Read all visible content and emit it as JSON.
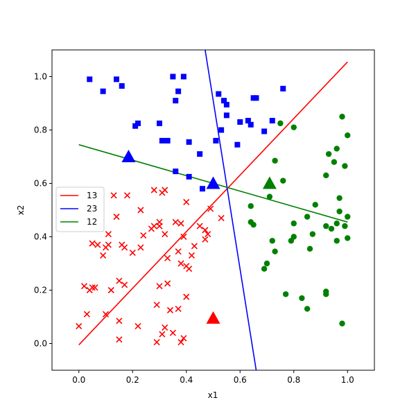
{
  "chart_data": {
    "type": "scatter",
    "title": "",
    "xlabel": "x1",
    "ylabel": "x2",
    "xlim": [
      -0.1,
      1.1
    ],
    "ylim": [
      -0.1,
      1.1
    ],
    "xticks": [
      "0.0",
      "0.2",
      "0.4",
      "0.6",
      "0.8",
      "1.0"
    ],
    "yticks": [
      "0.0",
      "0.2",
      "0.4",
      "0.6",
      "0.8",
      "1.0"
    ],
    "grid": false,
    "legend_position": "center-left",
    "colors": {
      "red": "#ff0000",
      "blue": "#0000ff",
      "green": "#008000"
    },
    "scatter_series": [
      {
        "color": "#ff0000",
        "marker": "x",
        "points": [
          [
            0.0,
            0.065
          ],
          [
            0.02,
            0.215
          ],
          [
            0.03,
            0.11
          ],
          [
            0.04,
            0.2
          ],
          [
            0.05,
            0.375
          ],
          [
            0.05,
            0.21
          ],
          [
            0.06,
            0.21
          ],
          [
            0.07,
            0.37
          ],
          [
            0.09,
            0.33
          ],
          [
            0.1,
            0.36
          ],
          [
            0.1,
            0.11
          ],
          [
            0.11,
            0.37
          ],
          [
            0.11,
            0.41
          ],
          [
            0.12,
            0.2
          ],
          [
            0.13,
            0.555
          ],
          [
            0.14,
            0.475
          ],
          [
            0.15,
            0.235
          ],
          [
            0.15,
            0.085
          ],
          [
            0.15,
            0.015
          ],
          [
            0.16,
            0.37
          ],
          [
            0.17,
            0.36
          ],
          [
            0.17,
            0.22
          ],
          [
            0.18,
            0.555
          ],
          [
            0.2,
            0.34
          ],
          [
            0.22,
            0.065
          ],
          [
            0.23,
            0.5
          ],
          [
            0.23,
            0.36
          ],
          [
            0.24,
            0.405
          ],
          [
            0.27,
            0.43
          ],
          [
            0.28,
            0.575
          ],
          [
            0.28,
            0.44
          ],
          [
            0.29,
            0.005
          ],
          [
            0.29,
            0.145
          ],
          [
            0.3,
            0.44
          ],
          [
            0.3,
            0.455
          ],
          [
            0.3,
            0.215
          ],
          [
            0.31,
            0.565
          ],
          [
            0.31,
            0.035
          ],
          [
            0.32,
            0.575
          ],
          [
            0.32,
            0.41
          ],
          [
            0.32,
            0.06
          ],
          [
            0.33,
            0.32
          ],
          [
            0.33,
            0.225
          ],
          [
            0.34,
            0.125
          ],
          [
            0.35,
            0.04
          ],
          [
            0.36,
            0.455
          ],
          [
            0.37,
            0.345
          ],
          [
            0.37,
            0.13
          ],
          [
            0.38,
            0.45
          ],
          [
            0.38,
            0.3
          ],
          [
            0.38,
            0.005
          ],
          [
            0.39,
            0.4
          ],
          [
            0.39,
            0.02
          ],
          [
            0.4,
            0.53
          ],
          [
            0.4,
            0.29
          ],
          [
            0.4,
            0.175
          ],
          [
            0.41,
            0.28
          ],
          [
            0.42,
            0.33
          ],
          [
            0.43,
            0.365
          ],
          [
            0.45,
            0.44
          ],
          [
            0.47,
            0.39
          ],
          [
            0.47,
            0.425
          ],
          [
            0.48,
            0.41
          ],
          [
            0.49,
            0.505
          ],
          [
            0.53,
            0.47
          ]
        ]
      },
      {
        "color": "#0000ff",
        "marker": "square",
        "points": [
          [
            0.04,
            0.99
          ],
          [
            0.09,
            0.945
          ],
          [
            0.14,
            0.99
          ],
          [
            0.16,
            0.965
          ],
          [
            0.21,
            0.815
          ],
          [
            0.22,
            0.825
          ],
          [
            0.3,
            0.825
          ],
          [
            0.31,
            0.76
          ],
          [
            0.33,
            0.76
          ],
          [
            0.35,
            1.0
          ],
          [
            0.36,
            0.645
          ],
          [
            0.36,
            0.91
          ],
          [
            0.37,
            0.945
          ],
          [
            0.39,
            1.0
          ],
          [
            0.41,
            0.755
          ],
          [
            0.41,
            0.625
          ],
          [
            0.45,
            0.71
          ],
          [
            0.46,
            0.58
          ],
          [
            0.51,
            0.76
          ],
          [
            0.52,
            0.935
          ],
          [
            0.53,
            0.8
          ],
          [
            0.54,
            0.91
          ],
          [
            0.55,
            0.855
          ],
          [
            0.55,
            0.895
          ],
          [
            0.59,
            0.745
          ],
          [
            0.6,
            0.83
          ],
          [
            0.63,
            0.835
          ],
          [
            0.64,
            0.82
          ],
          [
            0.65,
            0.92
          ],
          [
            0.66,
            0.92
          ],
          [
            0.69,
            0.795
          ],
          [
            0.72,
            0.835
          ],
          [
            0.76,
            0.955
          ]
        ]
      },
      {
        "color": "#008000",
        "marker": "circle",
        "points": [
          [
            0.64,
            0.515
          ],
          [
            0.64,
            0.455
          ],
          [
            0.65,
            0.445
          ],
          [
            0.69,
            0.28
          ],
          [
            0.7,
            0.3
          ],
          [
            0.71,
            0.55
          ],
          [
            0.72,
            0.385
          ],
          [
            0.73,
            0.345
          ],
          [
            0.73,
            0.685
          ],
          [
            0.75,
            0.825
          ],
          [
            0.76,
            0.61
          ],
          [
            0.77,
            0.185
          ],
          [
            0.79,
            0.385
          ],
          [
            0.8,
            0.81
          ],
          [
            0.8,
            0.45
          ],
          [
            0.8,
            0.4
          ],
          [
            0.83,
            0.17
          ],
          [
            0.85,
            0.13
          ],
          [
            0.85,
            0.475
          ],
          [
            0.86,
            0.355
          ],
          [
            0.87,
            0.41
          ],
          [
            0.88,
            0.52
          ],
          [
            0.92,
            0.44
          ],
          [
            0.92,
            0.185
          ],
          [
            0.92,
            0.195
          ],
          [
            0.92,
            0.63
          ],
          [
            0.93,
            0.71
          ],
          [
            0.94,
            0.43
          ],
          [
            0.95,
            0.68
          ],
          [
            0.96,
            0.73
          ],
          [
            0.96,
            0.385
          ],
          [
            0.96,
            0.45
          ],
          [
            0.97,
            0.545
          ],
          [
            0.97,
            0.495
          ],
          [
            0.98,
            0.85
          ],
          [
            0.98,
            0.075
          ],
          [
            0.99,
            0.44
          ],
          [
            0.99,
            0.665
          ],
          [
            1.0,
            0.78
          ],
          [
            1.0,
            0.475
          ],
          [
            1.0,
            0.395
          ]
        ]
      }
    ],
    "centroids": [
      {
        "color": "#ff0000",
        "x": 0.5,
        "y": 0.095
      },
      {
        "color": "#0000ff",
        "x": 0.185,
        "y": 0.7
      },
      {
        "color": "#0000ff",
        "x": 0.5,
        "y": 0.6
      },
      {
        "color": "#008000",
        "x": 0.71,
        "y": 0.6
      }
    ],
    "lines": [
      {
        "name": "13",
        "color": "#ff0000",
        "x": [
          0.0,
          1.0
        ],
        "y": [
          -0.005,
          1.055
        ]
      },
      {
        "name": "23",
        "color": "#0000ff",
        "x": [
          0.47,
          0.66
        ],
        "y": [
          1.1,
          -0.1
        ]
      },
      {
        "name": "12",
        "color": "#008000",
        "x": [
          0.0,
          1.0
        ],
        "y": [
          0.745,
          0.455
        ]
      }
    ]
  }
}
